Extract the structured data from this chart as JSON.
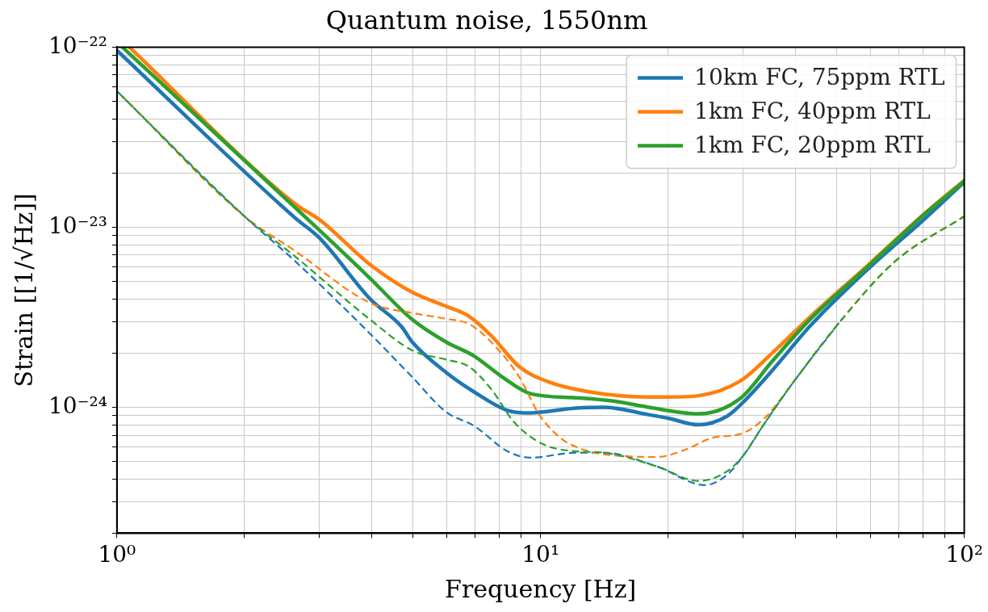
{
  "chart_data": {
    "type": "line",
    "title": "Quantum noise, 1550nm",
    "xlabel": "Frequency [Hz]",
    "ylabel": "Strain [[1/√Hz]]",
    "log": "xy",
    "grid": true,
    "legend": "top right",
    "xlim": [
      1,
      100
    ],
    "ylim": [
      2e-25,
      1e-22
    ],
    "xticks": [
      {
        "value": 1,
        "label": "10⁰"
      },
      {
        "value": 2,
        "label": null
      },
      {
        "value": 3,
        "label": null
      },
      {
        "value": 4,
        "label": null
      },
      {
        "value": 5,
        "label": null
      },
      {
        "value": 6,
        "label": null
      },
      {
        "value": 7,
        "label": null
      },
      {
        "value": 8,
        "label": null
      },
      {
        "value": 9,
        "label": null
      },
      {
        "value": 10,
        "label": "10¹"
      },
      {
        "value": 20,
        "label": null
      },
      {
        "value": 30,
        "label": null
      },
      {
        "value": 40,
        "label": null
      },
      {
        "value": 50,
        "label": null
      },
      {
        "value": 60,
        "label": null
      },
      {
        "value": 70,
        "label": null
      },
      {
        "value": 80,
        "label": null
      },
      {
        "value": 90,
        "label": null
      },
      {
        "value": 100,
        "label": "10²"
      }
    ],
    "yticks": [
      {
        "value": 2e-25,
        "label": null
      },
      {
        "value": 3e-25,
        "label": null
      },
      {
        "value": 4e-25,
        "label": null
      },
      {
        "value": 5e-25,
        "label": null
      },
      {
        "value": 6e-25,
        "label": null
      },
      {
        "value": 7e-25,
        "label": null
      },
      {
        "value": 8e-25,
        "label": null
      },
      {
        "value": 9e-25,
        "label": null
      },
      {
        "value": 1e-24,
        "label": "10⁻²⁴"
      },
      {
        "value": 2e-24,
        "label": null
      },
      {
        "value": 3e-24,
        "label": null
      },
      {
        "value": 4e-24,
        "label": null
      },
      {
        "value": 5e-24,
        "label": null
      },
      {
        "value": 6e-24,
        "label": null
      },
      {
        "value": 7e-24,
        "label": null
      },
      {
        "value": 8e-24,
        "label": null
      },
      {
        "value": 9e-24,
        "label": null
      },
      {
        "value": 1e-23,
        "label": "10⁻²³"
      },
      {
        "value": 2e-23,
        "label": null
      },
      {
        "value": 3e-23,
        "label": null
      },
      {
        "value": 4e-23,
        "label": null
      },
      {
        "value": 5e-23,
        "label": null
      },
      {
        "value": 6e-23,
        "label": null
      },
      {
        "value": 7e-23,
        "label": null
      },
      {
        "value": 8e-23,
        "label": null
      },
      {
        "value": 9e-23,
        "label": null
      },
      {
        "value": 1e-22,
        "label": "10⁻²²"
      }
    ],
    "series": [
      {
        "name": "10km FC, 75ppm RTL",
        "color": "#1f77b4",
        "line_style": "solid",
        "x": [
          1,
          2.63,
          3.01,
          3.96,
          4.7,
          4.98,
          5.99,
          6.96,
          8.36,
          9.35,
          12.1,
          14.1,
          18,
          20,
          23.6,
          27.5,
          30.1,
          35.2,
          43.4,
          59,
          80.2,
          100
        ],
        "values": [
          9.6e-23,
          1.13e-23,
          8.7e-24,
          4e-24,
          2.8e-24,
          2.3e-24,
          1.56e-24,
          1.22e-24,
          9.6e-25,
          9.3e-25,
          9.9e-25,
          1e-24,
          9.1e-25,
          8.7e-25,
          8e-25,
          8.9e-25,
          1.07e-24,
          1.6e-24,
          2.85e-24,
          5.8e-24,
          1.1e-23,
          1.78e-23
        ]
      },
      {
        "name": "1km FC, 40ppm RTL",
        "color": "#ff7f0e",
        "line_style": "solid",
        "x": [
          1.07,
          2.63,
          3.01,
          3.96,
          4.98,
          5.99,
          6.78,
          7.65,
          8.91,
          10.4,
          13,
          18,
          20,
          23.6,
          29.6,
          35.2,
          43.4,
          59,
          80.2,
          100
        ],
        "values": [
          1e-22,
          1.35e-23,
          1.1e-23,
          6.2e-24,
          4.35e-24,
          3.64e-24,
          3.2e-24,
          2.5e-24,
          1.68e-24,
          1.39e-24,
          1.22e-24,
          1.14e-24,
          1.14e-24,
          1.16e-24,
          1.4e-24,
          2e-24,
          3.2e-24,
          6.1e-24,
          1.18e-23,
          1.82e-23
        ]
      },
      {
        "name": "1km FC, 20ppm RTL",
        "color": "#2ca02c",
        "line_style": "solid",
        "x": [
          1.03,
          3.01,
          3.96,
          4.98,
          5.99,
          6.96,
          8.13,
          9.47,
          12.1,
          15,
          18,
          23.6,
          29.6,
          35.2,
          43.4,
          59,
          80.2,
          100
        ],
        "values": [
          1e-22,
          9.6e-24,
          5.2e-24,
          3.07e-24,
          2.3e-24,
          1.93e-24,
          1.47e-24,
          1.19e-24,
          1.13e-24,
          1.08e-24,
          1e-24,
          9.2e-25,
          1.12e-24,
          1.8e-24,
          3.1e-24,
          6e-24,
          1.17e-23,
          1.8e-23
        ]
      },
      {
        "color": "#1f77b4",
        "line_style": "dashed",
        "x": [
          1,
          2,
          2.63,
          3.96,
          4.98,
          5.99,
          6.96,
          8.36,
          9.47,
          12.1,
          14.1,
          18.8,
          24.4,
          27.5,
          30.1,
          33.6,
          39.7,
          50.6
        ],
        "values": [
          5.7e-23,
          1.15e-23,
          6.5e-24,
          2.56e-24,
          1.47e-24,
          9.4e-25,
          7.9e-25,
          5.7e-25,
          5.25e-25,
          5.6e-25,
          5.6e-25,
          4.7e-25,
          3.7e-25,
          4.2e-25,
          5.4e-25,
          8e-25,
          1.4e-24,
          2.94e-24
        ]
      },
      {
        "color": "#ff7f0e",
        "line_style": "dashed",
        "x": [
          1,
          2,
          2.63,
          3.96,
          4.98,
          5.99,
          6.78,
          7.65,
          8.91,
          9.9,
          11.2,
          13,
          15,
          18.8,
          21.9,
          25.6,
          29.6,
          33.6,
          39.7,
          50.6,
          68.6,
          100
        ],
        "values": [
          5.7e-23,
          1.15e-23,
          7.4e-24,
          3.8e-24,
          3.34e-24,
          3.1e-24,
          2.9e-24,
          2.3e-24,
          1.47e-24,
          9.2e-25,
          6.7e-25,
          5.7e-25,
          5.4e-25,
          5.3e-25,
          5.8e-25,
          6.8e-25,
          7.1e-25,
          8.6e-25,
          1.4e-24,
          2.94e-24,
          6.45e-24,
          1.15e-23
        ]
      },
      {
        "color": "#2ca02c",
        "line_style": "dashed",
        "x": [
          1,
          2,
          2.63,
          3.96,
          4.98,
          5.99,
          6.78,
          7.65,
          8.65,
          10.05,
          12.1,
          14.1,
          18.8,
          23.6,
          27.5,
          30.1,
          33.6,
          39.7,
          50.6,
          68.6,
          100
        ],
        "values": [
          5.7e-23,
          1.15e-23,
          6.9e-24,
          3.07e-24,
          2.07e-24,
          1.84e-24,
          1.68e-24,
          1.26e-24,
          8.3e-25,
          6.3e-25,
          5.7e-25,
          5.6e-25,
          4.7e-25,
          3.9e-25,
          4.4e-25,
          5.4e-25,
          8e-25,
          1.4e-24,
          2.94e-24,
          6.45e-24,
          1.15e-23
        ]
      }
    ]
  }
}
